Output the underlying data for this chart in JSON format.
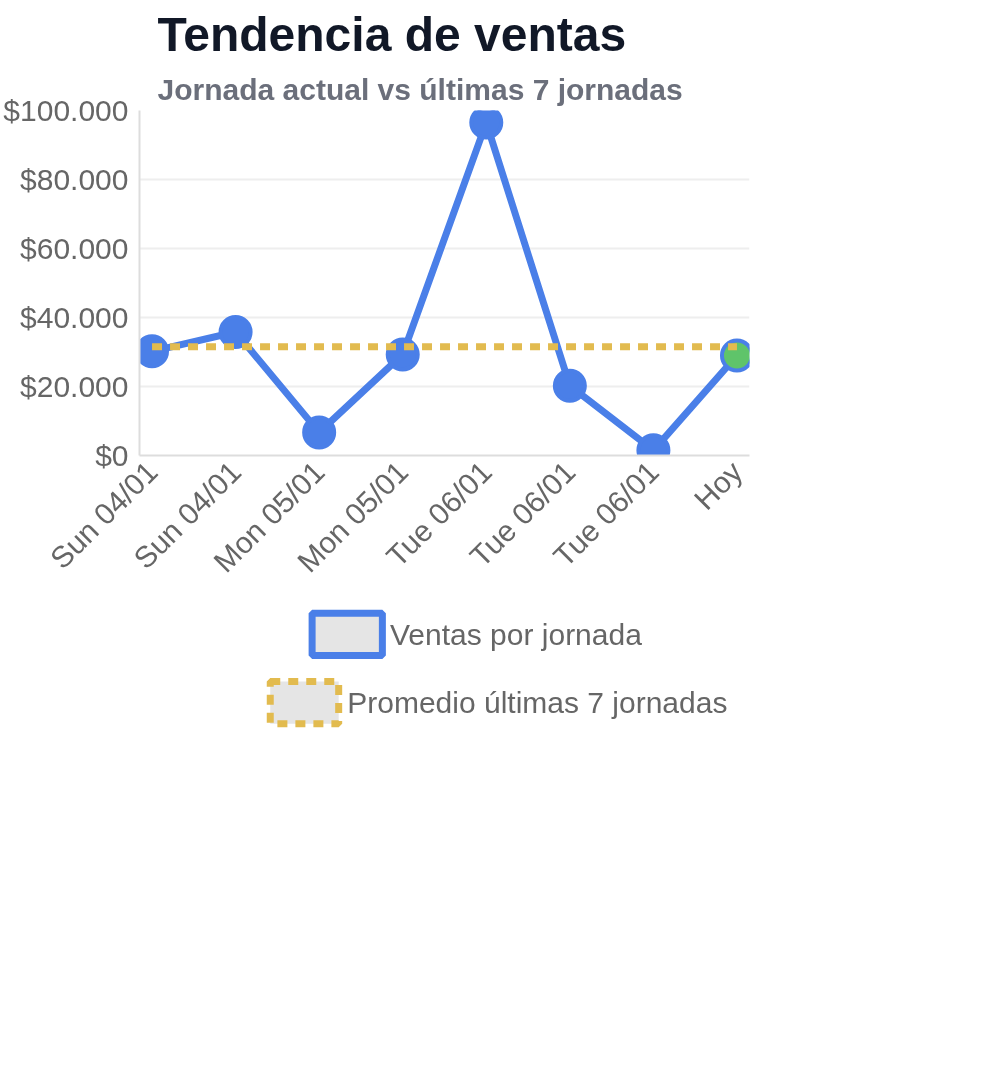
{
  "chart_data": {
    "type": "line",
    "title": "Tendencia de ventas",
    "subtitle": "Jornada actual vs últimas 7 jornadas",
    "categories": [
      "Sun 04/01",
      "Sun 04/01",
      "Mon 05/01",
      "Mon 05/01",
      "Tue 06/01",
      "Tue 06/01",
      "Tue 06/01",
      "Hoy"
    ],
    "series": [
      {
        "name": "Ventas por jornada",
        "color": "#4a7fe8",
        "colors": [
          "#4a7fe8",
          "#4a7fe8",
          "#4a7fe8",
          "#4a7fe8",
          "#4a7fe8",
          "#4a7fe8",
          "#4a7fe8",
          "#5fc46a"
        ],
        "values": [
          30200,
          35800,
          6700,
          29300,
          96500,
          20200,
          1500,
          29000
        ],
        "marker": "circle",
        "line_style": "solid"
      },
      {
        "name": "Promedio últimas 7 jornadas",
        "color": "#e2bb4f",
        "values": [
          31500,
          31500,
          31500,
          31500,
          31500,
          31500,
          31500,
          31500
        ],
        "marker": "none",
        "line_style": "dashed"
      }
    ],
    "ylim": [
      0,
      100000
    ],
    "yticks": [
      {
        "value": 0,
        "label": "$0"
      },
      {
        "value": 20000,
        "label": "$20.000"
      },
      {
        "value": 40000,
        "label": "$40.000"
      },
      {
        "value": 60000,
        "label": "$60.000"
      },
      {
        "value": 80000,
        "label": "$80.000"
      },
      {
        "value": 100000,
        "label": "$100.000"
      }
    ],
    "grid": "y",
    "legend": "bottom"
  }
}
